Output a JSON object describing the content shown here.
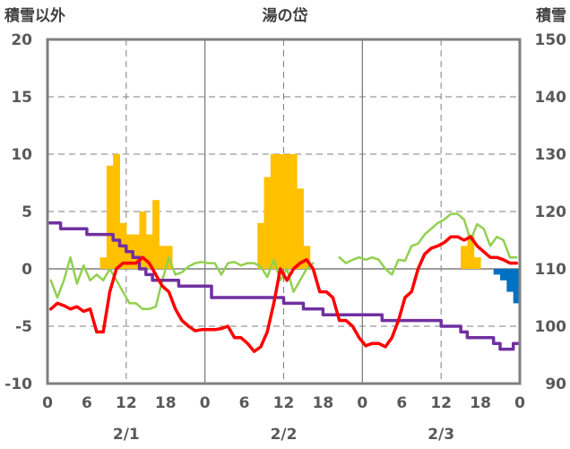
{
  "chart_data": {
    "type": "bar+line",
    "title": "湯の岱",
    "left_axis_label": "積雪以外",
    "right_axis_label": "積雪",
    "left_ylim": [
      -10,
      20
    ],
    "left_ticks": [
      "20",
      "15",
      "10",
      "5",
      "0",
      "-5",
      "-10"
    ],
    "right_ylim": [
      90,
      150
    ],
    "right_ticks": [
      "150",
      "140",
      "130",
      "120",
      "110",
      "100",
      "90"
    ],
    "x_tick_labels": [
      "0",
      "6",
      "12",
      "18",
      "0",
      "6",
      "12",
      "18",
      "0",
      "6",
      "12",
      "18",
      "0"
    ],
    "date_labels": [
      "2/1",
      "2/2",
      "2/3"
    ],
    "grid": "dashed vertical lines at 12h and dashed horizontal lines at 5-unit steps",
    "colors": {
      "precip_bars": "#FFC000",
      "snow_change_bars": "#0070C0",
      "temperature": "#FF0000",
      "wind_green": "#92D050",
      "snow_depth": "#7030A0",
      "axis": "#7F7F7F",
      "grid": "#7F7F7F"
    },
    "hours": 72,
    "precip_bars": [
      0,
      0,
      0,
      0,
      0,
      0,
      0,
      0,
      1,
      9,
      10,
      4,
      3,
      3,
      5,
      3,
      6,
      2,
      2,
      0,
      0,
      0,
      0,
      0,
      0,
      0,
      0,
      0,
      0,
      0,
      0,
      0,
      4,
      8,
      10,
      10,
      10,
      10,
      7,
      2,
      0,
      0,
      0,
      0,
      0,
      0,
      0,
      0,
      0,
      0,
      0,
      0,
      0,
      0,
      0,
      0,
      0,
      0,
      0,
      0,
      0,
      0,
      0,
      2,
      3,
      1,
      0,
      0,
      0,
      0,
      0,
      0
    ],
    "snow_change_bars": [
      0,
      0,
      0,
      0,
      0,
      0,
      0,
      0,
      0,
      0,
      0,
      0,
      0,
      0,
      0,
      0,
      0,
      0,
      0,
      0,
      0,
      0,
      0,
      0,
      0,
      0,
      0,
      0,
      0,
      0,
      0,
      0,
      0,
      0,
      0,
      0,
      0,
      0,
      0,
      0,
      0,
      0,
      0,
      0,
      0,
      0,
      0,
      0,
      0,
      0,
      0,
      0,
      0,
      0,
      0,
      0,
      0,
      0,
      0,
      0,
      0,
      0,
      0,
      0,
      0,
      0,
      0,
      0,
      -0.5,
      -1,
      -2,
      -3
    ],
    "temperature": [
      -3.5,
      -3,
      -3.2,
      -3.5,
      -3.3,
      -3.7,
      -3.5,
      -5.5,
      -5.5,
      -2,
      0,
      0.5,
      0.5,
      0.5,
      1,
      0.5,
      -0.5,
      -1.5,
      -2,
      -3.5,
      -4.5,
      -5,
      -5.4,
      -5.3,
      -5.3,
      -5.3,
      -5.2,
      -5,
      -6,
      -6,
      -6.5,
      -7.2,
      -6.8,
      -5.5,
      -3,
      0,
      -1,
      0,
      0.5,
      0.8,
      0,
      -2,
      -2,
      -2.5,
      -4.5,
      -4.5,
      -5,
      -6,
      -6.7,
      -6.5,
      -6.5,
      -6.8,
      -6,
      -4.5,
      -2.5,
      -2,
      0,
      1.3,
      1.8,
      2,
      2.3,
      2.8,
      2.8,
      2.5,
      2.8,
      2,
      1.5,
      1,
      1,
      0.8,
      0.5,
      0.5
    ],
    "wind_green": [
      -1,
      -2.5,
      -1,
      1,
      -1.3,
      0.3,
      -1,
      -0.5,
      -1,
      0,
      -1,
      -2,
      -3,
      -3,
      -3.5,
      -3.5,
      -3.3,
      -1,
      1,
      -0.5,
      -0.3,
      0.2,
      0.5,
      0.6,
      0.5,
      0.5,
      -0.5,
      0.5,
      0.6,
      0.3,
      0.5,
      0.5,
      0.2,
      -0.7,
      0.8,
      -1,
      0,
      -2,
      -1,
      0,
      0.5,
      null,
      null,
      null,
      1,
      0.5,
      0.8,
      1,
      0.8,
      1,
      0.8,
      0,
      -0.5,
      0.8,
      0.7,
      2,
      2.2,
      3,
      3.5,
      4,
      4.3,
      4.8,
      4.8,
      4.3,
      2.5,
      3.9,
      3.5,
      2,
      2.8,
      2.5,
      1,
      1
    ],
    "snow_depth": [
      118,
      118,
      117,
      117,
      117,
      117,
      116,
      116,
      116,
      116,
      115,
      114,
      113,
      112,
      110,
      109,
      108,
      108,
      108,
      108,
      107,
      107,
      107,
      107,
      107,
      105,
      105,
      105,
      105,
      105,
      105,
      105,
      105,
      105,
      105,
      105,
      104,
      104,
      104,
      103,
      103,
      103,
      102,
      102,
      102,
      102,
      102,
      102,
      102,
      102,
      102,
      101,
      101,
      101,
      101,
      101,
      101,
      101,
      101,
      101,
      100,
      100,
      100,
      99,
      98,
      98,
      98,
      98,
      97,
      96,
      96,
      97
    ]
  }
}
